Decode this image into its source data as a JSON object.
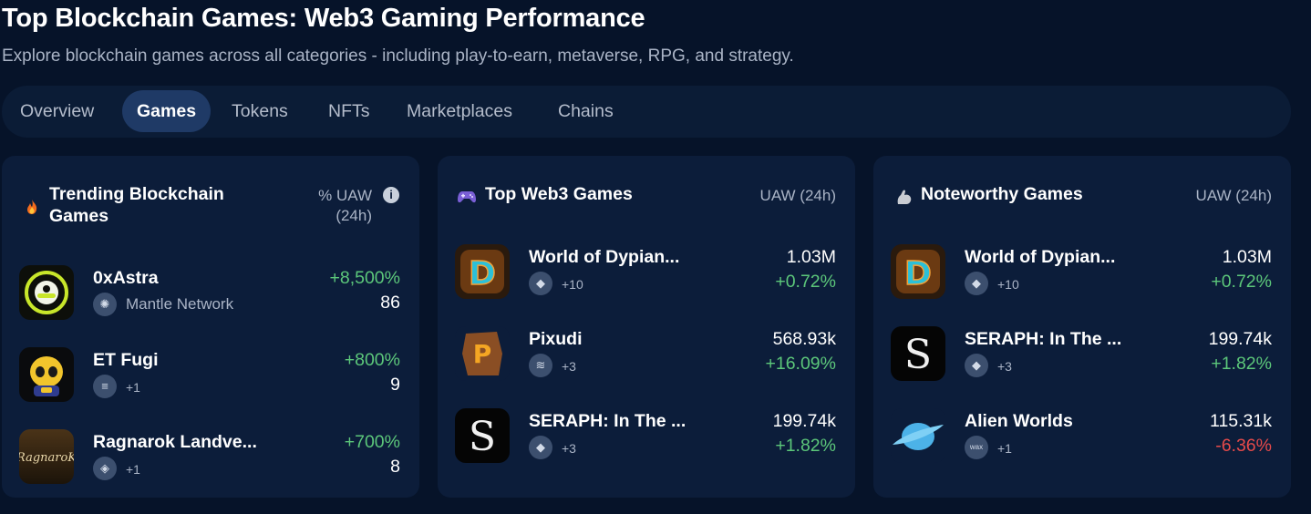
{
  "header": {
    "title": "Top Blockchain Games: Web3 Gaming Performance",
    "subtitle": "Explore blockchain games across all categories - including play-to-earn, metaverse, RPG, and strategy."
  },
  "tabs": [
    {
      "label": "Overview",
      "active": false
    },
    {
      "label": "Games",
      "active": true
    },
    {
      "label": "Tokens",
      "active": false
    },
    {
      "label": "NFTs",
      "active": false
    },
    {
      "label": "Marketplaces",
      "active": false
    },
    {
      "label": "Chains",
      "active": false
    }
  ],
  "trending": {
    "title_line1": "Trending Blockchain",
    "title_line2": "Games",
    "emoji": "fire-icon",
    "metric_line1": "% UAW",
    "metric_line2": "(24h)",
    "rows": [
      {
        "name": "0xAstra",
        "chain": "Mantle Network",
        "change": "+8,500%",
        "value": "86"
      },
      {
        "name": "ET Fugi",
        "chain": "+1",
        "change": "+800%",
        "value": "9"
      },
      {
        "name": "Ragnarok Landve...",
        "chain": "+1",
        "change": "+700%",
        "value": "8"
      }
    ]
  },
  "top_web3": {
    "title": "Top Web3 Games",
    "emoji": "gamepad-icon",
    "metric": "UAW (24h)",
    "rows": [
      {
        "name": "World of Dypian...",
        "chain": "+10",
        "value": "1.03M",
        "change": "+0.72%"
      },
      {
        "name": "Pixudi",
        "chain": "+3",
        "value": "568.93k",
        "change": "+16.09%"
      },
      {
        "name": "SERAPH: In The ...",
        "chain": "+3",
        "value": "199.74k",
        "change": "+1.82%"
      }
    ]
  },
  "noteworthy": {
    "title": "Noteworthy Games",
    "emoji": "flexed-arm-icon",
    "metric": "UAW (24h)",
    "rows": [
      {
        "name": "World of Dypian...",
        "chain": "+10",
        "value": "1.03M",
        "change": "+0.72%"
      },
      {
        "name": "SERAPH: In The ...",
        "chain": "+3",
        "value": "199.74k",
        "change": "+1.82%"
      },
      {
        "name": "Alien Worlds",
        "chain": "+1",
        "value": "115.31k",
        "change": "-6.36%"
      }
    ]
  },
  "colors": {
    "background": "#061329",
    "card": "#0c1d3a",
    "active_tab": "#1f3a66",
    "positive": "#5cc77a",
    "negative": "#e64a4a"
  }
}
